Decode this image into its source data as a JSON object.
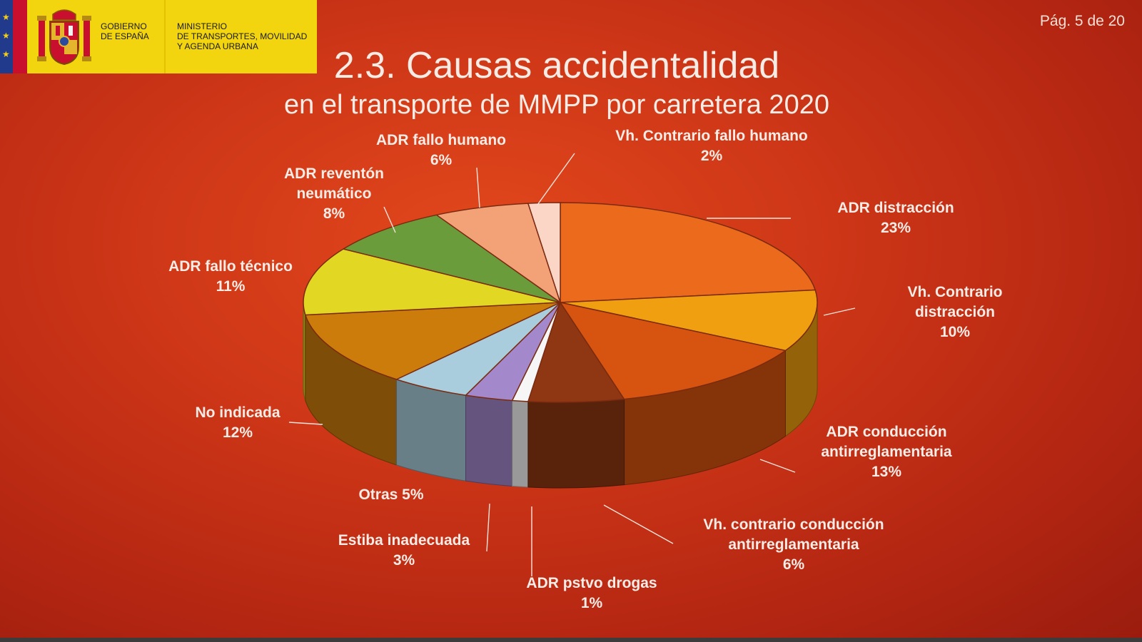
{
  "header": {
    "gov_label": "GOBIERNO\nDE ESPAÑA",
    "ministry_label": "MINISTERIO\nDE TRANSPORTES, MOVILIDAD\nY AGENDA URBANA",
    "page_indicator": "Pág. 5 de 20"
  },
  "colors": {
    "background": "#c8341a",
    "gov_yellow": "#f2d50f",
    "flag_blue": "#213a8c",
    "flag_red": "#c8102e"
  },
  "icons": [
    "coat-of-arms-icon",
    "eu-star-icon"
  ],
  "chart_data": {
    "type": "pie",
    "style": "3d",
    "title": "2.3. Causas accidentalidad",
    "subtitle": "en el transporte de MMPP por carretera 2020",
    "slices": [
      {
        "label": "ADR distracción",
        "value": 23,
        "pct_label": "23%",
        "color": "#ec6a1c"
      },
      {
        "label": "Vh. Contrario distracción",
        "value": 10,
        "pct_label": "10%",
        "color": "#ef9f0f"
      },
      {
        "label": "ADR conducción antirreglamentaria",
        "value": 13,
        "pct_label": "13%",
        "color": "#d6540f"
      },
      {
        "label": "Vh. contrario conducción antirreglamentaria",
        "value": 6,
        "pct_label": "6%",
        "color": "#8e3712"
      },
      {
        "label": "ADR pstvo drogas",
        "value": 1,
        "pct_label": "1%",
        "color": "#f6f6f6"
      },
      {
        "label": "Estiba inadecuada",
        "value": 3,
        "pct_label": "3%",
        "color": "#a388cc"
      },
      {
        "label": "Otras",
        "value": 5,
        "pct_label": "5%",
        "color": "#a9cddc"
      },
      {
        "label": "No indicada",
        "value": 12,
        "pct_label": "12%",
        "color": "#cc7c0b"
      },
      {
        "label": "ADR fallo técnico",
        "value": 11,
        "pct_label": "11%",
        "color": "#e2d722"
      },
      {
        "label": "ADR reventón neumático",
        "value": 8,
        "pct_label": "8%",
        "color": "#6b9c3c"
      },
      {
        "label": "ADR fallo humano",
        "value": 6,
        "pct_label": "6%",
        "color": "#f3a278"
      },
      {
        "label": "Vh. Contrario fallo humano",
        "value": 2,
        "pct_label": "2%",
        "color": "#fbd6c7"
      }
    ],
    "labels": [
      {
        "lines": [
          "ADR distracción",
          "23%"
        ]
      },
      {
        "lines": [
          "Vh. Contrario",
          "distracción",
          "10%"
        ]
      },
      {
        "lines": [
          "ADR conducción",
          "antirreglamentaria",
          "13%"
        ]
      },
      {
        "lines": [
          "Vh. contrario conducción",
          "antirreglamentaria",
          "6%"
        ]
      },
      {
        "lines": [
          "ADR pstvo drogas",
          "1%"
        ]
      },
      {
        "lines": [
          "Estiba inadecuada",
          "3%"
        ]
      },
      {
        "lines": [
          "Otras 5%"
        ]
      },
      {
        "lines": [
          "No indicada",
          "12%"
        ]
      },
      {
        "lines": [
          "ADR fallo técnico",
          "11%"
        ]
      },
      {
        "lines": [
          "ADR reventón",
          "neumático",
          "8%"
        ]
      },
      {
        "lines": [
          "ADR fallo humano",
          "6%"
        ]
      },
      {
        "lines": [
          "Vh. Contrario fallo humano",
          "2%"
        ]
      }
    ]
  }
}
